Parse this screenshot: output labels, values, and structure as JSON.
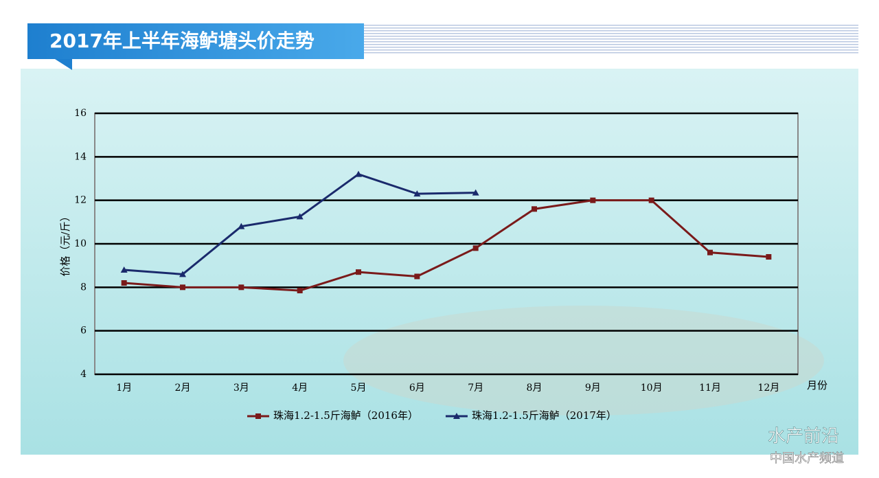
{
  "chart_data": {
    "type": "line",
    "title": "2017年上半年海鲈塘头价走势",
    "y_label": "价格（元/斤）",
    "x_label": "月份",
    "categories": [
      "1月",
      "2月",
      "3月",
      "4月",
      "5月",
      "6月",
      "7月",
      "8月",
      "9月",
      "10月",
      "11月",
      "12月"
    ],
    "series": [
      {
        "name": "珠海1.2-1.5斤海鲈（2016年）",
        "color": "#7a1a1a",
        "marker": "square",
        "values": [
          8.2,
          8.0,
          8.0,
          7.85,
          8.7,
          8.5,
          9.8,
          11.6,
          12.0,
          12.0,
          9.6,
          9.4
        ]
      },
      {
        "name": "珠海1.2-1.5斤海鲈（2017年）",
        "color": "#1a2a6c",
        "marker": "triangle",
        "values": [
          8.8,
          8.6,
          10.8,
          11.25,
          13.2,
          12.3,
          12.35,
          null,
          null,
          null,
          null,
          null
        ]
      }
    ],
    "ylim": [
      4,
      16
    ],
    "yticks": [
      4,
      6,
      8,
      10,
      12,
      14,
      16
    ],
    "grid": true,
    "legend": "bottom"
  },
  "watermark": {
    "name": "水产前沿",
    "site": "中国水产频道"
  }
}
